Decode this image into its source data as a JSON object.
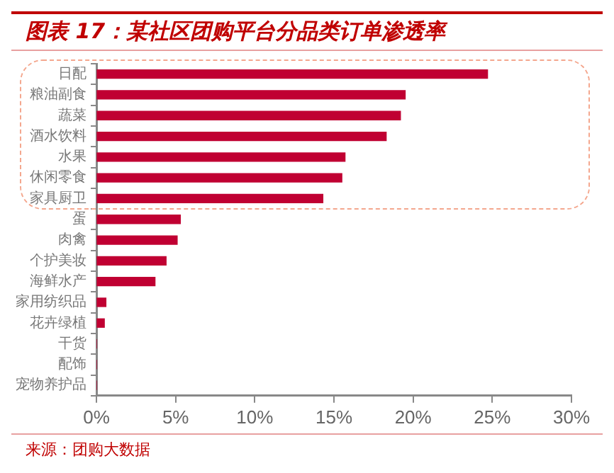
{
  "chart_data": {
    "type": "bar",
    "orientation": "horizontal",
    "title": "图表 17：某社区团购平台分品类订单渗透率",
    "categories": [
      "日配",
      "粮油副食",
      "蔬菜",
      "酒水饮料",
      "水果",
      "休闲零食",
      "家具厨卫",
      "蛋",
      "肉禽",
      "个护美妆",
      "海鲜水产",
      "家用纺织品",
      "花卉绿植",
      "干货",
      "配饰",
      "宠物养护品"
    ],
    "values": [
      24.7,
      19.5,
      19.2,
      18.3,
      15.7,
      15.5,
      14.3,
      5.3,
      5.1,
      4.4,
      3.7,
      0.6,
      0.5,
      0,
      0,
      0
    ],
    "color": "#c00032",
    "xlim": [
      0,
      30
    ],
    "xticks": [
      {
        "value": 0,
        "label": "0%"
      },
      {
        "value": 5,
        "label": "5%"
      },
      {
        "value": 10,
        "label": "10%"
      },
      {
        "value": 15,
        "label": "15%"
      },
      {
        "value": 20,
        "label": "20%"
      },
      {
        "value": 25,
        "label": "25%"
      },
      {
        "value": 30,
        "label": "30%"
      }
    ],
    "grid": false,
    "legend": false,
    "annotations": [
      "来源：团购大数据"
    ]
  }
}
